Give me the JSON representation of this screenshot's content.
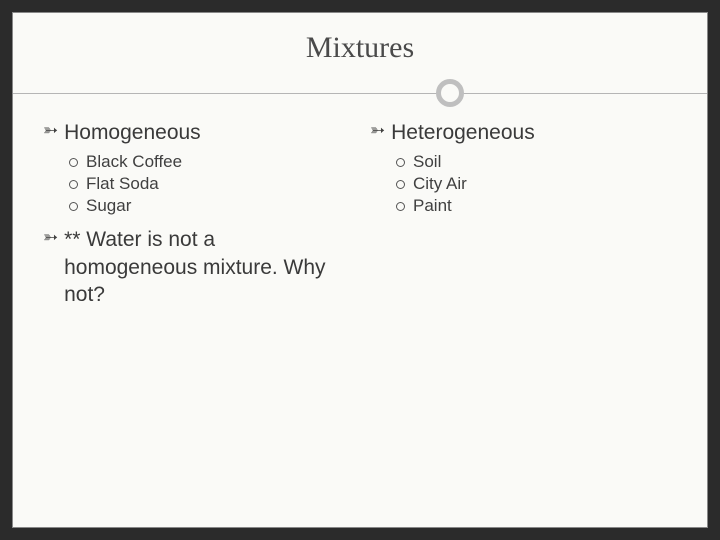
{
  "slide": {
    "title": "Mixtures",
    "background_color": "#fafaf7",
    "title_color": "#4a4a4a",
    "divider_color": "#b5b5b5",
    "ring_color": "#bfbfbf",
    "text_color": "#3a3a3a"
  },
  "left": {
    "heading": "Homogeneous",
    "items": [
      "Black Coffee",
      "Flat Soda",
      "Sugar"
    ],
    "note": "** Water is not a homogeneous mixture. Why not?"
  },
  "right": {
    "heading": "Heterogeneous",
    "items": [
      "Soil",
      "City Air",
      "Paint"
    ]
  }
}
